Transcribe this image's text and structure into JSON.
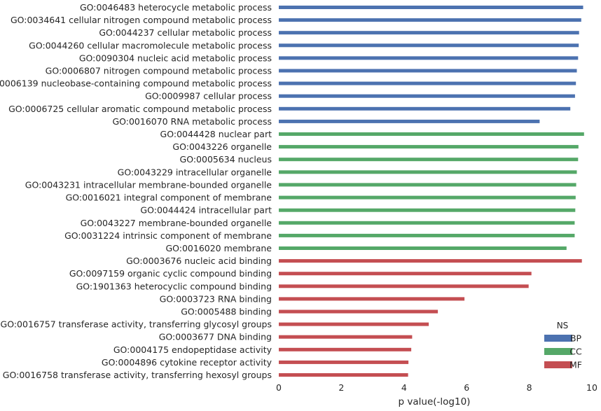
{
  "chart_data": {
    "type": "bar",
    "orientation": "horizontal",
    "categories": [
      "GO:0046483 heterocycle metabolic process",
      "GO:0034641 cellular nitrogen compound metabolic process",
      "GO:0044237 cellular metabolic process",
      "GO:0044260 cellular macromolecule metabolic process",
      "GO:0090304 nucleic acid metabolic process",
      "GO:0006807 nitrogen compound metabolic process",
      "GO:0006139 nucleobase-containing compound metabolic process",
      "GO:0009987 cellular process",
      "GO:0006725 cellular aromatic compound metabolic process",
      "GO:0016070 RNA metabolic process",
      "GO:0044428 nuclear part",
      "GO:0043226 organelle",
      "GO:0005634 nucleus",
      "GO:0043229 intracellular organelle",
      "GO:0043231 intracellular membrane-bounded organelle",
      "GO:0016021 integral component of membrane",
      "GO:0044424 intracellular part",
      "GO:0043227 membrane-bounded organelle",
      "GO:0031224 intrinsic component of membrane",
      "GO:0016020 membrane",
      "GO:0003676 nucleic acid binding",
      "GO:0097159 organic cyclic compound binding",
      "GO:1901363 heterocyclic compound binding",
      "GO:0003723 RNA binding",
      "GO:0005488 binding",
      "GO:0016757 transferase activity, transferring glycosyl groups",
      "GO:0003677 DNA binding",
      "GO:0004175 endopeptidase activity",
      "GO:0004896 cytokine receptor activity",
      "GO:0016758 transferase activity, transferring hexosyl groups"
    ],
    "values": [
      9.72,
      9.66,
      9.59,
      9.58,
      9.56,
      9.52,
      9.49,
      9.46,
      9.31,
      8.33,
      9.75,
      9.57,
      9.56,
      9.52,
      9.5,
      9.48,
      9.47,
      9.45,
      9.45,
      9.19,
      9.68,
      8.07,
      7.98,
      5.93,
      5.08,
      4.79,
      4.26,
      4.23,
      4.14,
      4.13
    ],
    "groups": [
      "BP",
      "BP",
      "BP",
      "BP",
      "BP",
      "BP",
      "BP",
      "BP",
      "BP",
      "BP",
      "CC",
      "CC",
      "CC",
      "CC",
      "CC",
      "CC",
      "CC",
      "CC",
      "CC",
      "CC",
      "MF",
      "MF",
      "MF",
      "MF",
      "MF",
      "MF",
      "MF",
      "MF",
      "MF",
      "MF"
    ],
    "title": "",
    "xlabel": "p value(-log10)",
    "ylabel": "",
    "xlim": [
      0,
      10
    ],
    "xticks": [
      "0",
      "2",
      "4",
      "6",
      "8",
      "10"
    ],
    "grid": false,
    "legend": {
      "title": "NS",
      "placement": "bottom-right",
      "entries": [
        {
          "name": "BP",
          "color": "#4c72b0"
        },
        {
          "name": "CC",
          "color": "#55a868"
        },
        {
          "name": "MF",
          "color": "#c44e52"
        }
      ]
    }
  }
}
